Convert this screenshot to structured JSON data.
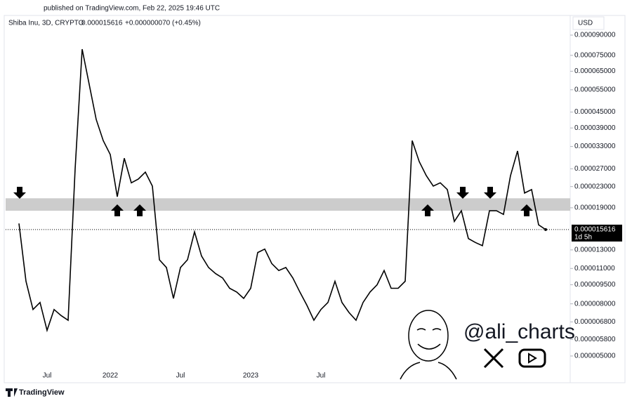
{
  "header": {
    "published": "published on TradingView.com, Feb 22, 2025 19:46 UTC",
    "symbol": "Shiba Inu, 3D, CRYPTO",
    "price": "0.000015616",
    "change": "+0.000000070 (+0.45%)",
    "currency": "USD",
    "brand": "TradingView",
    "handle": "@ali_charts"
  },
  "chart_data": {
    "type": "line",
    "log_scale": true,
    "grid": false,
    "color": "#000000",
    "categories": [
      null,
      null,
      null,
      null,
      "Jul",
      null,
      null,
      null,
      null,
      null,
      null,
      null,
      null,
      "2022",
      null,
      null,
      null,
      null,
      null,
      null,
      null,
      null,
      null,
      "Jul",
      null,
      null,
      null,
      null,
      null,
      null,
      null,
      null,
      null,
      "2023",
      null,
      null,
      null,
      null,
      null,
      null,
      null,
      null,
      null,
      "Jul",
      null,
      null,
      null,
      null,
      null,
      null,
      null,
      null,
      null,
      null,
      null,
      null,
      null,
      null,
      null,
      null,
      null,
      null,
      null,
      null,
      null,
      null,
      null,
      null,
      null,
      null,
      null,
      null,
      null,
      null,
      null,
      null
    ],
    "values": [
      1.65e-05,
      9.8e-06,
      7.6e-06,
      8.1e-06,
      6.3e-06,
      7.6e-06,
      7.2e-06,
      6.9e-06,
      2.7e-05,
      7.93e-05,
      5.78e-05,
      4.21e-05,
      3.48e-05,
      3.07e-05,
      2.1e-05,
      2.97e-05,
      2.38e-05,
      2.46e-05,
      2.62e-05,
      2.31e-05,
      1.19e-05,
      1.11e-05,
      8.4e-06,
      1.11e-05,
      1.19e-05,
      1.53e-05,
      1.23e-05,
      1.11e-05,
      1.05e-05,
      1.01e-05,
      9.2e-06,
      8.9e-06,
      8.4e-06,
      9.2e-06,
      1.27e-05,
      1.31e-05,
      1.15e-05,
      1.08e-05,
      1.11e-05,
      1.01e-05,
      8.9e-06,
      7.9e-06,
      6.9e-06,
      7.6e-06,
      8.1e-06,
      9.8e-06,
      8.1e-06,
      7.4e-06,
      6.9e-06,
      8.1e-06,
      8.9e-06,
      9.5e-06,
      1.08e-05,
      9.2e-06,
      9.2e-06,
      9.8e-06,
      3.48e-05,
      2.88e-05,
      2.54e-05,
      2.31e-05,
      2.38e-05,
      2.24e-05,
      1.68e-05,
      1.85e-05,
      1.44e-05,
      1.39e-05,
      1.35e-05,
      1.85e-05,
      1.85e-05,
      1.79e-05,
      2.54e-05,
      3.17e-05,
      2.17e-05,
      2.24e-05,
      1.63e-05,
      1.5616e-05
    ],
    "ylim": [
      3.93e-06,
      0.0001088
    ],
    "yticks": [
      {
        "value": 9e-05,
        "label": "0.000090000"
      },
      {
        "value": 7.5e-05,
        "label": "0.000075000"
      },
      {
        "value": 6.5e-05,
        "label": "0.000065000"
      },
      {
        "value": 5.5e-05,
        "label": "0.000055000"
      },
      {
        "value": 4.5e-05,
        "label": "0.000045000"
      },
      {
        "value": 3.9e-05,
        "label": "0.000039000"
      },
      {
        "value": 3.3e-05,
        "label": "0.000033000"
      },
      {
        "value": 2.7e-05,
        "label": "0.000027000"
      },
      {
        "value": 2.3e-05,
        "label": "0.000023000"
      },
      {
        "value": 1.9e-05,
        "label": "0.000019000"
      },
      {
        "value": 1.3e-05,
        "label": "0.000013000"
      },
      {
        "value": 1.1e-05,
        "label": "0.000011000"
      },
      {
        "value": 9.5e-06,
        "label": "0.000009500"
      },
      {
        "value": 8e-06,
        "label": "0.000008000"
      },
      {
        "value": 6.8e-06,
        "label": "0.000006800"
      },
      {
        "value": 5.8e-06,
        "label": "0.000005800"
      },
      {
        "value": 5e-06,
        "label": "0.000005000"
      }
    ],
    "zone": [
      1.85e-05,
      2.07e-05
    ],
    "zone_color": "#cccccc",
    "last_price": {
      "value": 1.5616e-05,
      "label": "0.000015616"
    },
    "countdown": "1d 5h"
  }
}
